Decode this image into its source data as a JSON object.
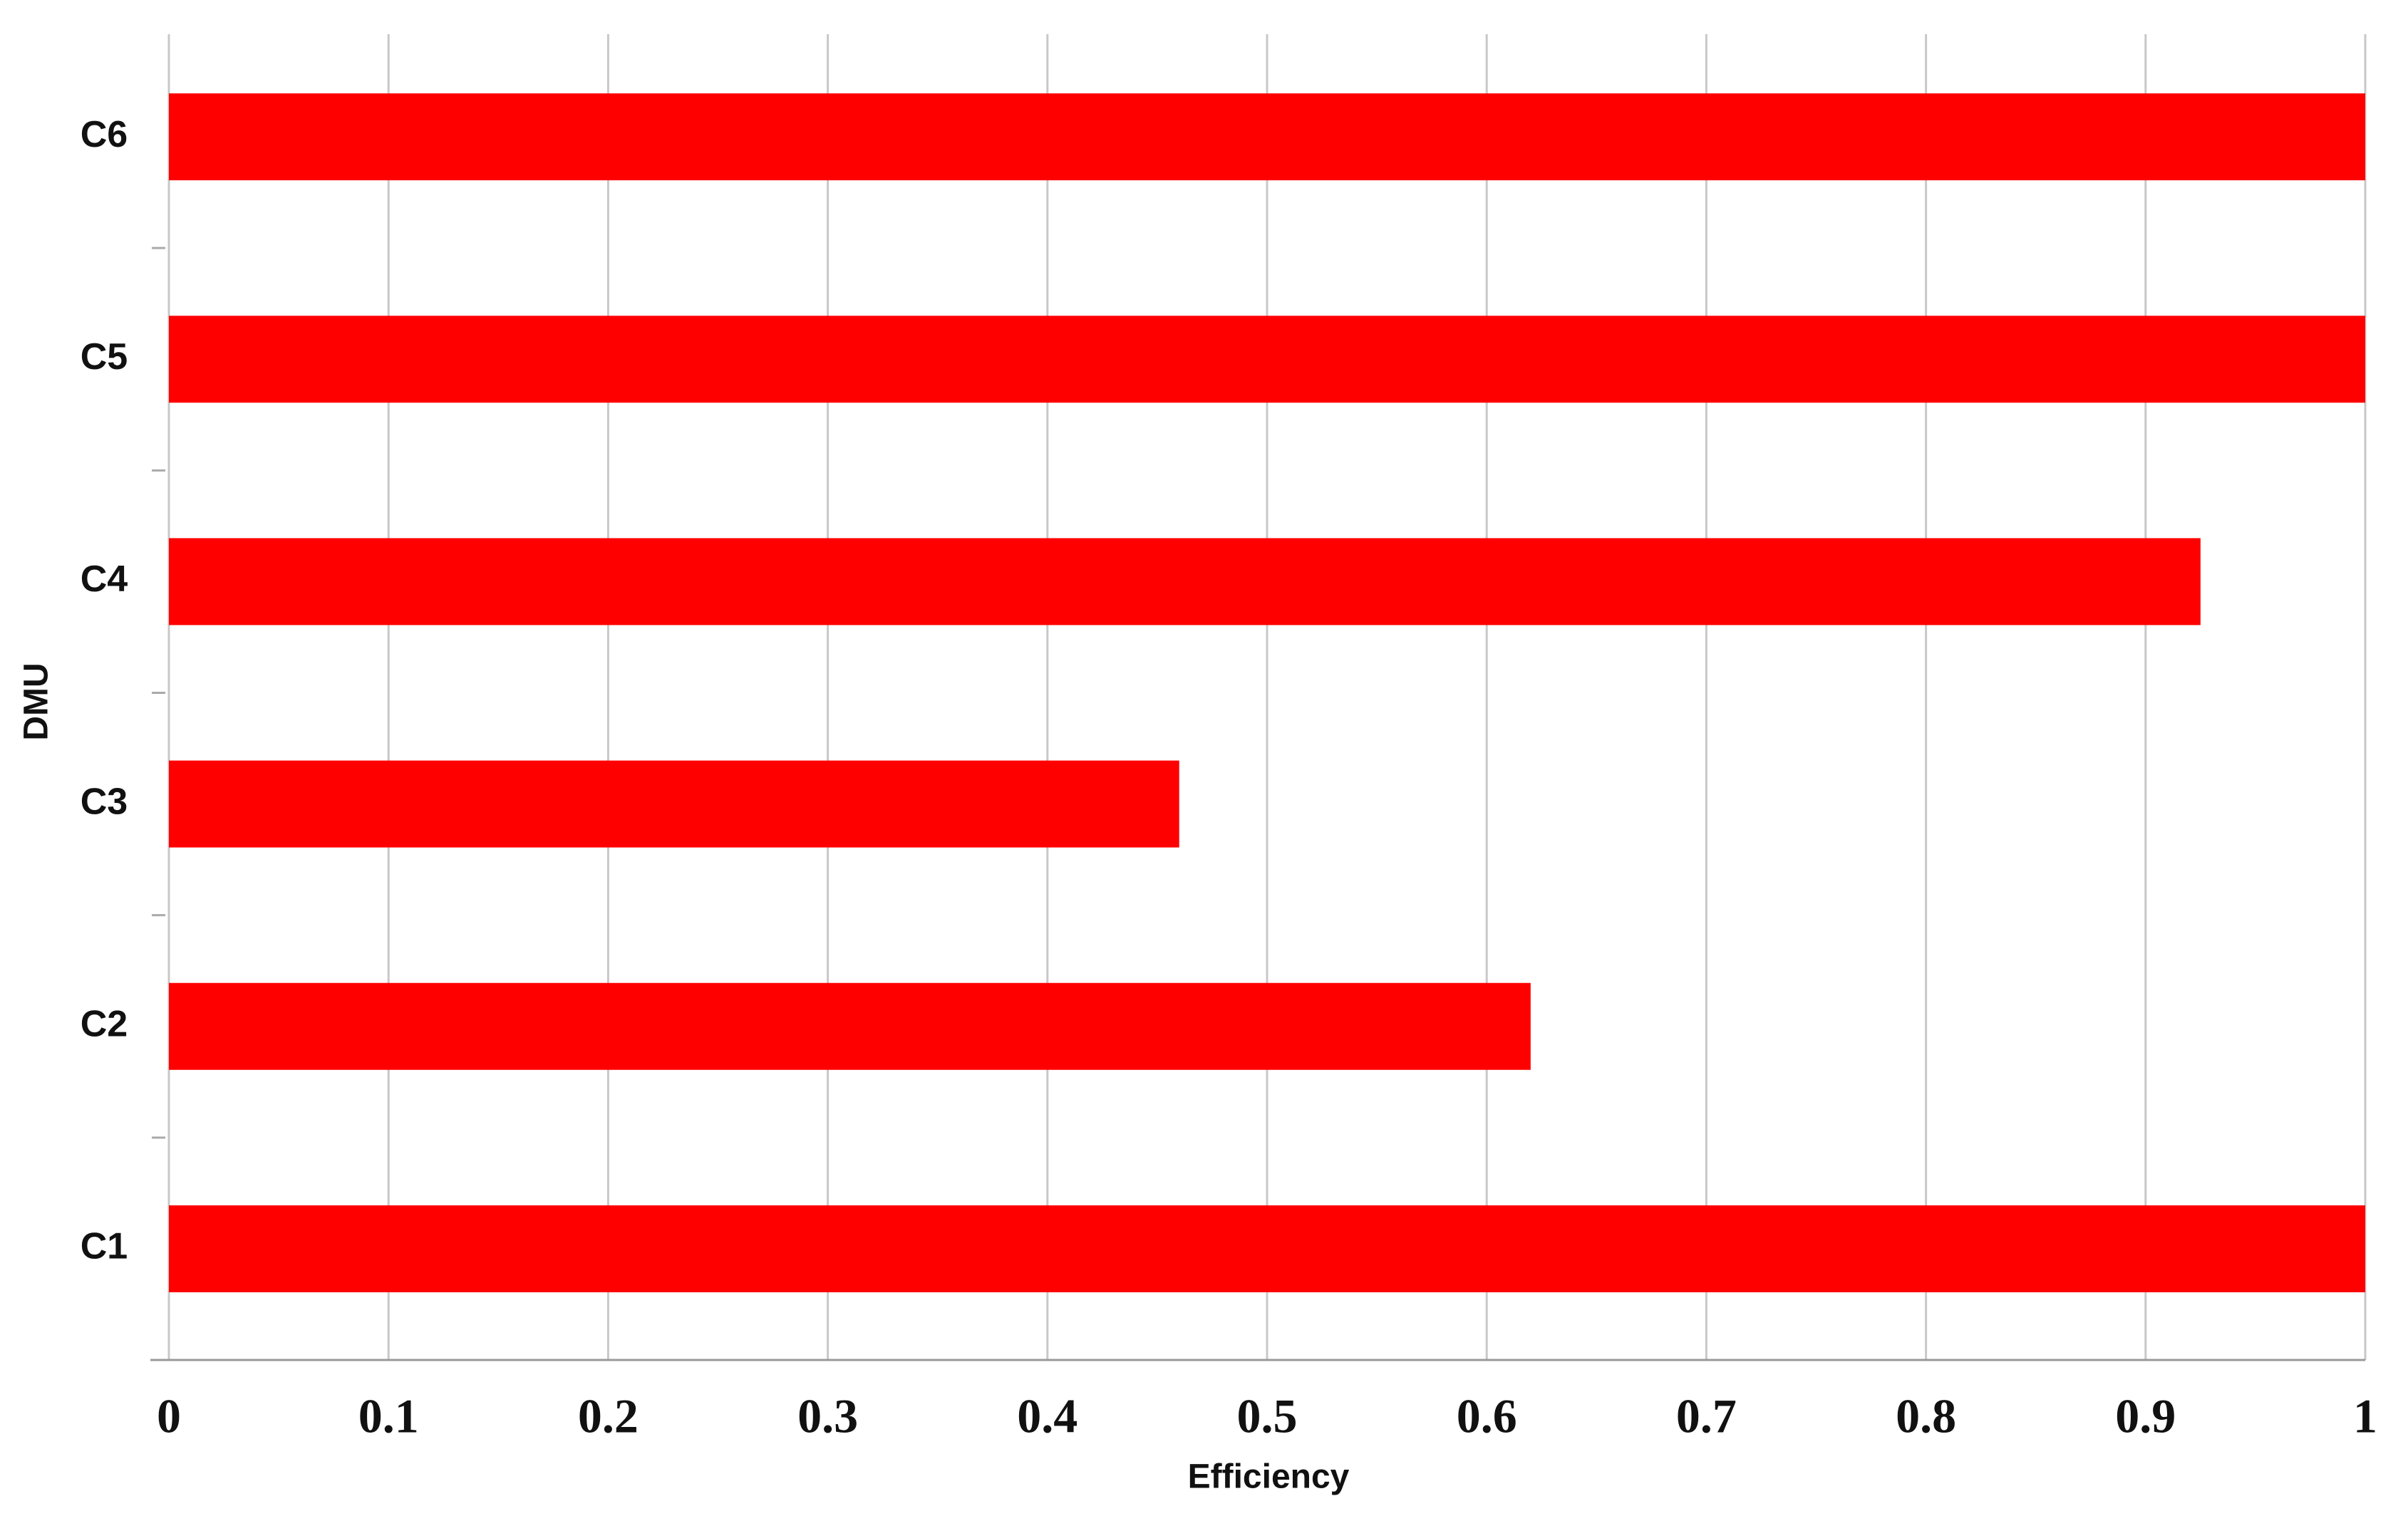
{
  "chart_data": {
    "type": "hbar",
    "x_label": "Efficiency",
    "y_label": "DMU",
    "categories": [
      "C1",
      "C2",
      "C3",
      "C4",
      "C5",
      "C6"
    ],
    "values": [
      1,
      0.62,
      0.46,
      0.925,
      1,
      1
    ],
    "color": "#ff0000",
    "xlim": [
      0,
      1
    ],
    "xticks": [
      0,
      0.1,
      0.2,
      0.3,
      0.4,
      0.5,
      0.6,
      0.7,
      0.8,
      0.9,
      1
    ],
    "grid": true
  }
}
